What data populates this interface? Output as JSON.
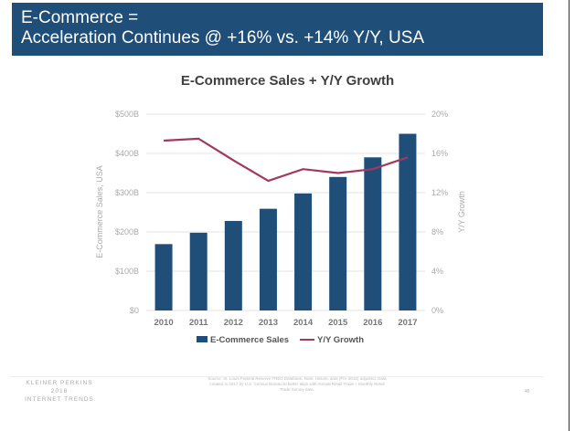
{
  "banner": {
    "line1": "E-Commerce =",
    "line2": "Acceleration Continues @ +16% vs. +14% Y/Y, USA"
  },
  "chart_data": {
    "type": "bar+line",
    "title": "E-Commerce Sales + Y/Y Growth",
    "categories": [
      "2010",
      "2011",
      "2012",
      "2013",
      "2014",
      "2015",
      "2016",
      "2017"
    ],
    "series": [
      {
        "name": "E-Commerce Sales",
        "type": "bar",
        "axis": "left",
        "unit": "$B",
        "values": [
          169,
          198,
          228,
          259,
          298,
          340,
          390,
          450
        ],
        "color": "#1f4e79"
      },
      {
        "name": "Y/Y Growth",
        "type": "line",
        "axis": "right",
        "unit": "%",
        "values": [
          17.3,
          17.5,
          15.3,
          13.2,
          14.4,
          14.0,
          14.4,
          15.6
        ],
        "color": "#a3385f"
      }
    ],
    "ylabel": "E-Commerce Sales, USA",
    "y2label": "Y/Y Growth",
    "ylim": [
      0,
      500
    ],
    "y2lim": [
      0,
      20
    ],
    "yticks": [
      "$0",
      "$100B",
      "$200B",
      "$300B",
      "$400B",
      "$500B"
    ],
    "y2ticks": [
      "0%",
      "4%",
      "8%",
      "12%",
      "16%",
      "20%"
    ],
    "grid": true,
    "legend": "bottom"
  },
  "footer": {
    "logo_line1": "KLEINER PERKINS",
    "logo_line2": "2018",
    "logo_line3": "INTERNET TRENDS",
    "source": "Source: St. Louis Federal Reserve FRED Database. Note: Historic data (Pre-2016) adjusted. Data created in 2017 by U.S. Census Bureau to better align with Annual Retail Trade + Monthly Retail Trade Survey data.",
    "page": "45"
  }
}
